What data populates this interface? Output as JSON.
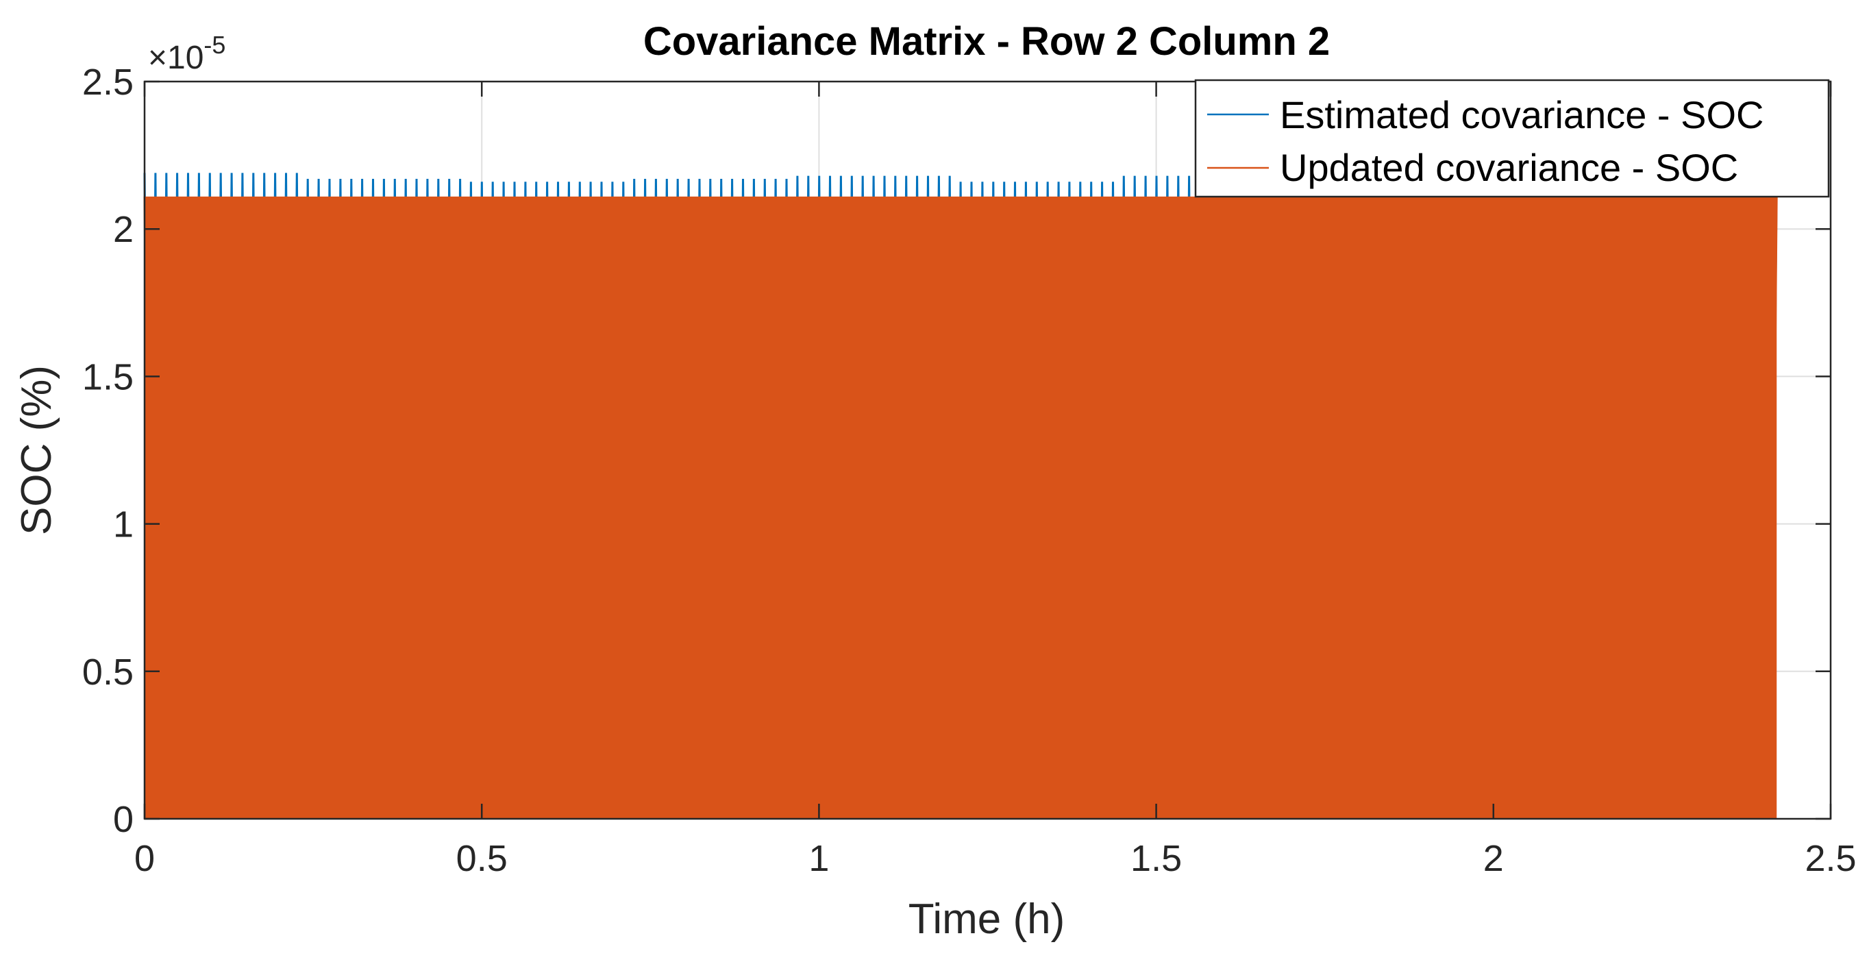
{
  "chart_data": {
    "type": "line",
    "title": "Covariance Matrix - Row 2 Column 2",
    "xlabel": "Time (h)",
    "ylabel": "SOC (%)",
    "y_exponent_base": "×10",
    "y_exponent_power": "-5",
    "xlim": [
      0,
      2.5
    ],
    "ylim": [
      0,
      2.5
    ],
    "x_ticks": [
      0,
      0.5,
      1,
      1.5,
      2,
      2.5
    ],
    "x_tick_labels": [
      "0",
      "0.5",
      "1",
      "1.5",
      "2",
      "2.5"
    ],
    "y_ticks": [
      0,
      0.5,
      1,
      1.5,
      2,
      2.5
    ],
    "y_tick_labels": [
      "0",
      "0.5",
      "1",
      "1.5",
      "2",
      "2.5"
    ],
    "grid": true,
    "legend_position": "top-right",
    "series": [
      {
        "name": "Estimated covariance - SOC",
        "color": "#0072BD",
        "pattern": "oscillating",
        "x_range": [
          0,
          2.42
        ],
        "peak_values": [
          2.19,
          2.17,
          2.16,
          2.17,
          2.18,
          2.16,
          2.18,
          2.16,
          2.18,
          2.17
        ],
        "trough_values": [
          0.07,
          0.06,
          0.06,
          0.07,
          0.06,
          0.06,
          0.07,
          0.06,
          0.06,
          0.07
        ]
      },
      {
        "name": "Updated covariance - SOC",
        "color": "#D95319",
        "pattern": "oscillating",
        "x_range": [
          0,
          2.42
        ],
        "peak_values": [
          2.11,
          2.11,
          2.11,
          2.11,
          2.11,
          2.11,
          2.11,
          2.11,
          2.11,
          2.11
        ],
        "trough_values": [
          0.0,
          0.0,
          0.0,
          0.0,
          0.0,
          0.0,
          0.0,
          0.0,
          0.0,
          0.0
        ]
      }
    ]
  }
}
